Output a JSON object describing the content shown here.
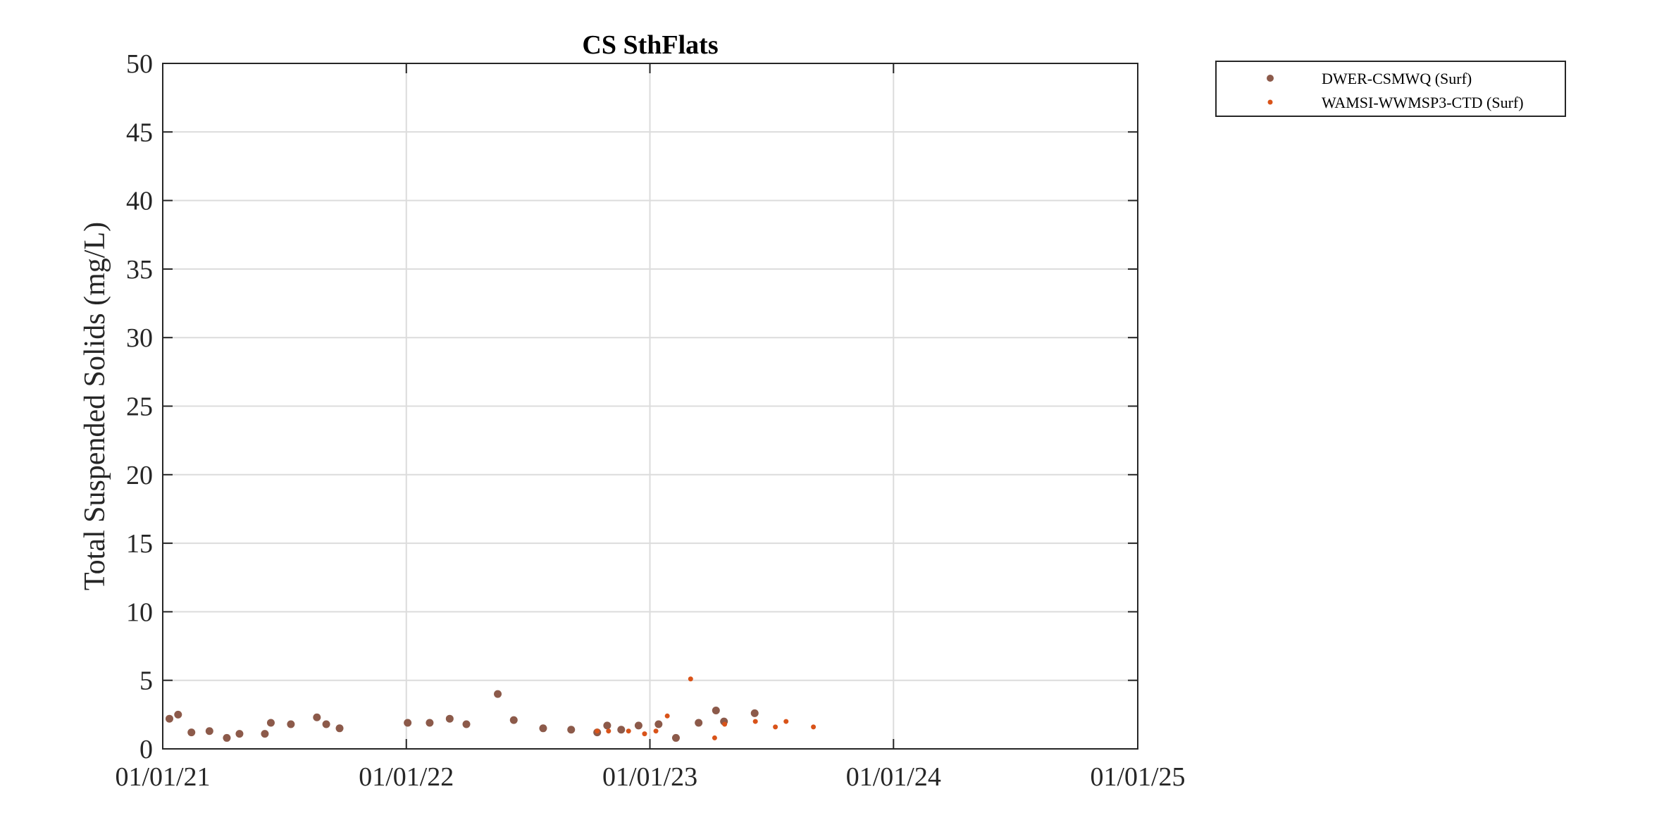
{
  "chart_data": {
    "type": "scatter",
    "title": "CS SthFlats",
    "xlabel": "",
    "ylabel": "Total Suspended Solids (mg/L)",
    "x_axis": {
      "type": "date",
      "range": [
        "2021-01-01",
        "2025-01-01"
      ],
      "ticks": [
        "2021-01-01",
        "2022-01-01",
        "2023-01-01",
        "2024-01-01",
        "2025-01-01"
      ],
      "tick_labels": [
        "01/01/21",
        "01/01/22",
        "01/01/23",
        "01/01/24",
        "01/01/25"
      ]
    },
    "y_axis": {
      "range": [
        0,
        50
      ],
      "ticks": [
        0,
        5,
        10,
        15,
        20,
        25,
        30,
        35,
        40,
        45,
        50
      ],
      "tick_labels": [
        "0",
        "5",
        "10",
        "15",
        "20",
        "25",
        "30",
        "35",
        "40",
        "45",
        "50"
      ]
    },
    "grid": true,
    "legend_position": "outside-top-right",
    "series": [
      {
        "name": "DWER-CSMWQ (Surf)",
        "color": "#8c5a4a",
        "marker": "large-dot",
        "points": [
          {
            "x": "2021-01-11",
            "y": 2.2
          },
          {
            "x": "2021-01-24",
            "y": 2.5
          },
          {
            "x": "2021-02-13",
            "y": 1.2
          },
          {
            "x": "2021-03-12",
            "y": 1.3
          },
          {
            "x": "2021-04-07",
            "y": 0.8
          },
          {
            "x": "2021-04-26",
            "y": 1.1
          },
          {
            "x": "2021-06-03",
            "y": 1.1
          },
          {
            "x": "2021-06-12",
            "y": 1.9
          },
          {
            "x": "2021-07-12",
            "y": 1.8
          },
          {
            "x": "2021-08-20",
            "y": 2.3
          },
          {
            "x": "2021-09-03",
            "y": 1.8
          },
          {
            "x": "2021-09-23",
            "y": 1.5
          },
          {
            "x": "2022-01-03",
            "y": 1.9
          },
          {
            "x": "2022-02-05",
            "y": 1.9
          },
          {
            "x": "2022-03-07",
            "y": 2.2
          },
          {
            "x": "2022-04-01",
            "y": 1.8
          },
          {
            "x": "2022-05-18",
            "y": 4.0
          },
          {
            "x": "2022-06-11",
            "y": 2.1
          },
          {
            "x": "2022-07-25",
            "y": 1.5
          },
          {
            "x": "2022-09-05",
            "y": 1.4
          },
          {
            "x": "2022-10-14",
            "y": 1.2
          },
          {
            "x": "2022-10-29",
            "y": 1.7
          },
          {
            "x": "2022-11-19",
            "y": 1.4
          },
          {
            "x": "2022-12-15",
            "y": 1.7
          },
          {
            "x": "2023-01-14",
            "y": 1.8
          },
          {
            "x": "2023-02-09",
            "y": 0.8
          },
          {
            "x": "2023-03-15",
            "y": 1.9
          },
          {
            "x": "2023-04-10",
            "y": 2.8
          },
          {
            "x": "2023-04-22",
            "y": 2.0
          },
          {
            "x": "2023-06-07",
            "y": 2.6
          }
        ]
      },
      {
        "name": "WAMSI-WWMSP3-CTD (Surf)",
        "color": "#d95319",
        "marker": "small-dot",
        "points": [
          {
            "x": "2022-10-14",
            "y": 1.3
          },
          {
            "x": "2022-10-31",
            "y": 1.3
          },
          {
            "x": "2022-11-30",
            "y": 1.3
          },
          {
            "x": "2022-12-24",
            "y": 1.1
          },
          {
            "x": "2023-01-10",
            "y": 1.3
          },
          {
            "x": "2023-01-27",
            "y": 2.4
          },
          {
            "x": "2023-03-03",
            "y": 5.1
          },
          {
            "x": "2023-04-08",
            "y": 0.8
          },
          {
            "x": "2023-04-23",
            "y": 1.8
          },
          {
            "x": "2023-06-08",
            "y": 2.0
          },
          {
            "x": "2023-07-08",
            "y": 1.6
          },
          {
            "x": "2023-07-24",
            "y": 2.0
          },
          {
            "x": "2023-09-03",
            "y": 1.6
          }
        ]
      }
    ]
  }
}
